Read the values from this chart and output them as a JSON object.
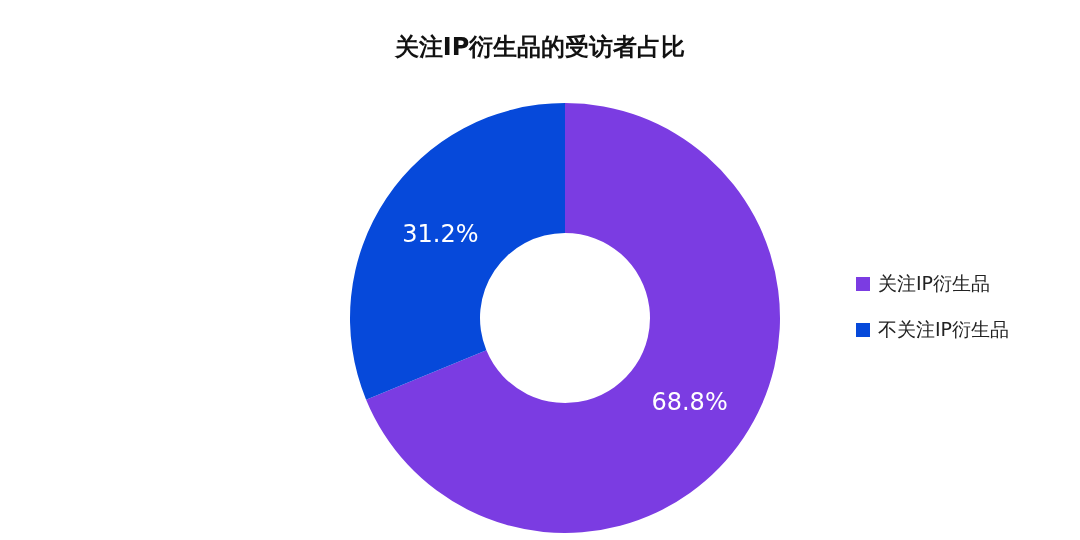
{
  "chart_data": {
    "type": "donut",
    "title": "关注IP衍生品的受访者占比",
    "categories": [
      "关注IP衍生品",
      "不关注IP衍生品"
    ],
    "values": [
      68.8,
      31.2
    ],
    "colors": [
      "#7b3ce2",
      "#0649da"
    ],
    "value_labels": [
      "68.8%",
      "31.2%"
    ],
    "legend": "right"
  }
}
